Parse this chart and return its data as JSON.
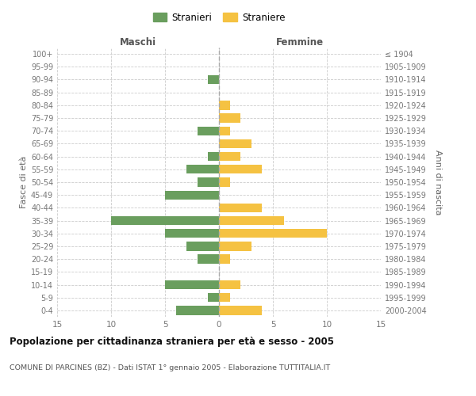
{
  "age_groups": [
    "100+",
    "95-99",
    "90-94",
    "85-89",
    "80-84",
    "75-79",
    "70-74",
    "65-69",
    "60-64",
    "55-59",
    "50-54",
    "45-49",
    "40-44",
    "35-39",
    "30-34",
    "25-29",
    "20-24",
    "15-19",
    "10-14",
    "5-9",
    "0-4"
  ],
  "birth_years": [
    "≤ 1904",
    "1905-1909",
    "1910-1914",
    "1915-1919",
    "1920-1924",
    "1925-1929",
    "1930-1934",
    "1935-1939",
    "1940-1944",
    "1945-1949",
    "1950-1954",
    "1955-1959",
    "1960-1964",
    "1965-1969",
    "1970-1974",
    "1975-1979",
    "1980-1984",
    "1985-1989",
    "1990-1994",
    "1995-1999",
    "2000-2004"
  ],
  "maschi": [
    0,
    0,
    1,
    0,
    0,
    0,
    2,
    0,
    1,
    3,
    2,
    5,
    0,
    10,
    5,
    3,
    2,
    0,
    5,
    1,
    4
  ],
  "femmine": [
    0,
    0,
    0,
    0,
    1,
    2,
    1,
    3,
    2,
    4,
    1,
    0,
    4,
    6,
    10,
    3,
    1,
    0,
    2,
    1,
    4
  ],
  "maschi_color": "#6a9e5e",
  "femmine_color": "#f5c242",
  "title": "Popolazione per cittadinanza straniera per età e sesso - 2005",
  "subtitle": "COMUNE DI PARCINES (BZ) - Dati ISTAT 1° gennaio 2005 - Elaborazione TUTTITALIA.IT",
  "header_left": "Maschi",
  "header_right": "Femmine",
  "ylabel_left": "Fasce di età",
  "ylabel_right": "Anni di nascita",
  "xlim": 15,
  "legend_stranieri": "Stranieri",
  "legend_straniere": "Straniere",
  "background_color": "#ffffff",
  "grid_color": "#cccccc",
  "bar_height": 0.7
}
